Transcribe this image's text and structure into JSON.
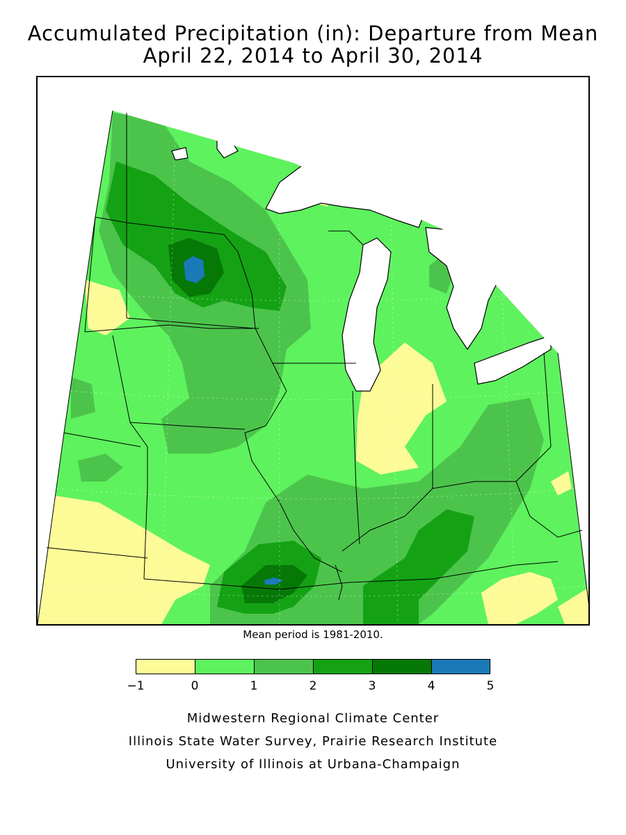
{
  "title": {
    "line1": "Accumulated Precipitation (in): Departure from Mean",
    "line2": "April 22, 2014 to April 30, 2014"
  },
  "note": "Mean period is 1981-2010.",
  "legend": {
    "units": "in",
    "bins": [
      {
        "from": -1,
        "to": 0,
        "color": "#fdfb98"
      },
      {
        "from": 0,
        "to": 1,
        "color": "#5ef25e"
      },
      {
        "from": 1,
        "to": 2,
        "color": "#4cc44c"
      },
      {
        "from": 2,
        "to": 3,
        "color": "#14a214"
      },
      {
        "from": 3,
        "to": 4,
        "color": "#067806"
      },
      {
        "from": 4,
        "to": 5,
        "color": "#1a7ab8"
      }
    ],
    "ticks": [
      "-1",
      "0",
      "1",
      "2",
      "3",
      "4",
      "5"
    ]
  },
  "credits": [
    "Midwestern Regional Climate Center",
    "Illinois State Water Survey, Prairie Research Institute",
    "University of Illinois at Urbana-Champaign"
  ]
}
